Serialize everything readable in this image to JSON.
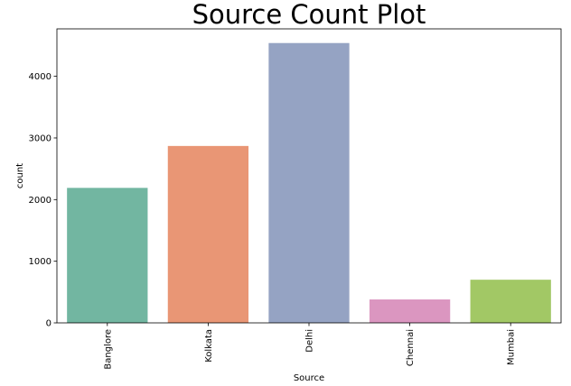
{
  "chart_data": {
    "type": "bar",
    "title": "Source Count Plot",
    "xlabel": "Source",
    "ylabel": "count",
    "categories": [
      "Banglore",
      "Kolkata",
      "Delhi",
      "Chennai",
      "Mumbai"
    ],
    "values": [
      2190,
      2870,
      4540,
      380,
      700
    ],
    "colors": [
      "#72b6a1",
      "#e99675",
      "#95a3c3",
      "#db96c0",
      "#a2c865"
    ],
    "ylim": [
      0,
      4770
    ],
    "yticks": [
      0,
      1000,
      2000,
      3000,
      4000
    ],
    "ytick_labels": [
      "0",
      "1000",
      "2000",
      "3000",
      "4000"
    ],
    "grid": false,
    "xtick_rotation": "vertical"
  }
}
